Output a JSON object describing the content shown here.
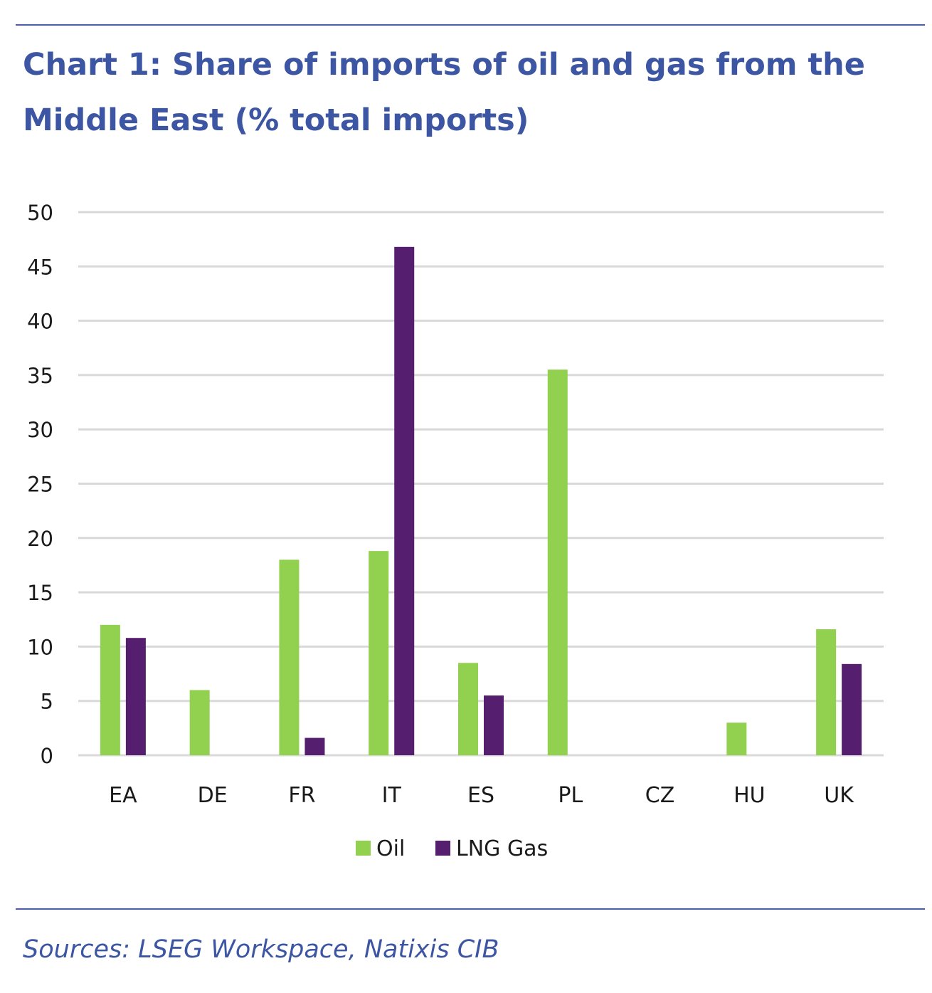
{
  "page": {
    "title": "Chart 1: Share of imports of oil and gas from the Middle East (% total imports)",
    "source": "Sources: LSEG Workspace, Natixis CIB"
  },
  "chart_data": {
    "type": "bar",
    "title": "Chart 1: Share of imports of oil and gas from the Middle East (% total imports)",
    "xlabel": "",
    "ylabel": "",
    "ylim": [
      0,
      50
    ],
    "yticks": [
      0,
      5,
      10,
      15,
      20,
      25,
      30,
      35,
      40,
      45,
      50
    ],
    "grid": true,
    "legend_position": "bottom-center",
    "categories": [
      "EA",
      "DE",
      "FR",
      "IT",
      "ES",
      "PL",
      "CZ",
      "HU",
      "UK"
    ],
    "series": [
      {
        "name": "Oil",
        "color": "#92d050",
        "values": [
          12.0,
          6.0,
          18.0,
          18.8,
          8.5,
          35.5,
          0,
          3.0,
          11.6
        ]
      },
      {
        "name": "LNG Gas",
        "color": "#561e6e",
        "values": [
          10.8,
          0,
          1.6,
          46.8,
          5.5,
          0,
          0,
          0,
          8.4
        ]
      }
    ],
    "gridline_color": "#d9d9d9"
  }
}
